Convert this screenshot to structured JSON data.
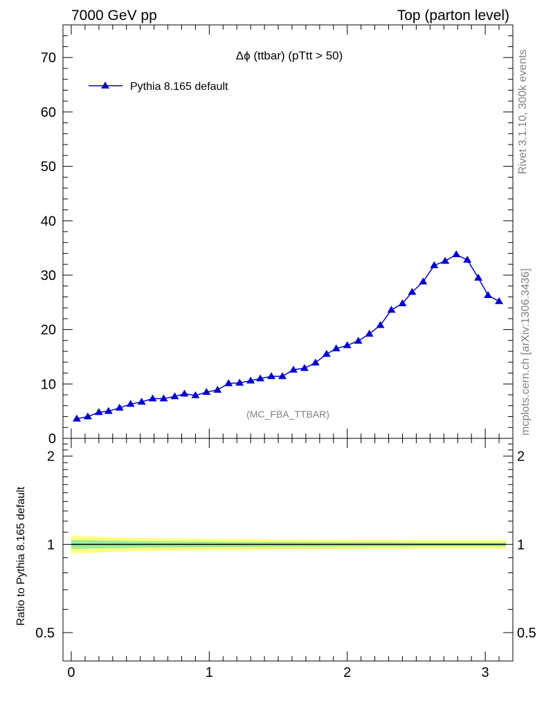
{
  "header": {
    "left": "7000 GeV pp",
    "right": "Top (parton level)"
  },
  "side_text": {
    "rivet": "Rivet 3.1.10,  300k events",
    "mcplots": "mcplots.cern.ch [arXiv:1306.3436]"
  },
  "chart_data": [
    {
      "type": "line",
      "title": "Δϕ (ttbar) (pTtt > 50)",
      "annotation": "(MC_FBA_TTBAR)",
      "xlim": [
        -0.06,
        3.2
      ],
      "ylim": [
        0,
        76
      ],
      "y_ticks": [
        0,
        10,
        20,
        30,
        40,
        50,
        60,
        70
      ],
      "legend": {
        "position": "top-left",
        "entries": [
          "Pythia 8.165 default"
        ]
      },
      "colors": {
        "series": "#0000cc"
      },
      "series": [
        {
          "name": "Pythia 8.165 default",
          "marker": "triangle",
          "x": [
            0.04,
            0.12,
            0.2,
            0.27,
            0.35,
            0.43,
            0.51,
            0.59,
            0.67,
            0.75,
            0.82,
            0.9,
            0.98,
            1.06,
            1.14,
            1.22,
            1.3,
            1.37,
            1.45,
            1.53,
            1.61,
            1.69,
            1.77,
            1.85,
            1.92,
            2.0,
            2.08,
            2.16,
            2.24,
            2.32,
            2.4,
            2.47,
            2.55,
            2.63,
            2.71,
            2.79,
            2.87,
            2.95,
            3.02,
            3.1
          ],
          "y": [
            3.6,
            4.0,
            4.8,
            5.0,
            5.6,
            6.3,
            6.7,
            7.3,
            7.3,
            7.7,
            8.2,
            7.9,
            8.5,
            8.9,
            10.1,
            10.2,
            10.6,
            11.0,
            11.4,
            11.4,
            12.6,
            12.9,
            13.9,
            15.5,
            16.5,
            17.1,
            17.9,
            19.2,
            20.8,
            23.6,
            24.8,
            26.9,
            28.8,
            31.8,
            32.6,
            33.8,
            32.8,
            29.5,
            26.3,
            25.2
          ]
        }
      ]
    },
    {
      "type": "line",
      "ylabel": "Ratio to Pythia 8.165 default",
      "xlim": [
        -0.06,
        3.2
      ],
      "ylim": [
        0.4,
        2.3
      ],
      "y_scale": "log",
      "x_ticks": [
        0,
        1,
        2,
        3
      ],
      "y_ticks": [
        0.5,
        1,
        2
      ],
      "reference": 1,
      "colors": {
        "band_outer": "#ffff80",
        "band_inner": "#99ee99",
        "ref_line": "#000000"
      },
      "band_x": [
        0,
        0.5,
        1.5,
        2.5,
        3.15
      ],
      "band_inner_half_width": [
        0.035,
        0.025,
        0.018,
        0.015,
        0.015
      ],
      "band_outer_half_width": [
        0.07,
        0.05,
        0.04,
        0.035,
        0.035
      ]
    }
  ]
}
